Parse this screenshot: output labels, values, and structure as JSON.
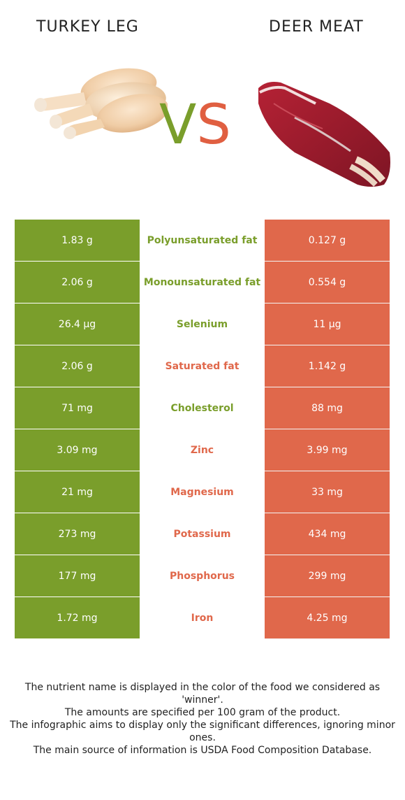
{
  "header": {
    "left_title": "TURKEY LEG",
    "right_title": "DEER MEAT",
    "vs_v": "V",
    "vs_s": "S"
  },
  "colors": {
    "turkey": "#7a9e2b",
    "deer": "#e0684b"
  },
  "rows": [
    {
      "turkey": "1.83 g",
      "nutrient": "Polyunsaturated fat",
      "deer": "0.127 g",
      "winner": "turkey"
    },
    {
      "turkey": "2.06 g",
      "nutrient": "Monounsaturated fat",
      "deer": "0.554 g",
      "winner": "turkey"
    },
    {
      "turkey": "26.4 µg",
      "nutrient": "Selenium",
      "deer": "11 µg",
      "winner": "turkey"
    },
    {
      "turkey": "2.06 g",
      "nutrient": "Saturated fat",
      "deer": "1.142 g",
      "winner": "deer"
    },
    {
      "turkey": "71 mg",
      "nutrient": "Cholesterol",
      "deer": "88 mg",
      "winner": "turkey"
    },
    {
      "turkey": "3.09 mg",
      "nutrient": "Zinc",
      "deer": "3.99 mg",
      "winner": "deer"
    },
    {
      "turkey": "21 mg",
      "nutrient": "Magnesium",
      "deer": "33 mg",
      "winner": "deer"
    },
    {
      "turkey": "273 mg",
      "nutrient": "Potassium",
      "deer": "434 mg",
      "winner": "deer"
    },
    {
      "turkey": "177 mg",
      "nutrient": "Phosphorus",
      "deer": "299 mg",
      "winner": "deer"
    },
    {
      "turkey": "1.72 mg",
      "nutrient": "Iron",
      "deer": "4.25 mg",
      "winner": "deer"
    }
  ],
  "footer": [
    "The nutrient name is displayed in the color of the food we considered as 'winner'.",
    "The amounts are specified per 100 gram of the product.",
    "The infographic aims to display only the significant differences, ignoring minor ones.",
    "The main source of information is USDA Food Composition Database."
  ]
}
